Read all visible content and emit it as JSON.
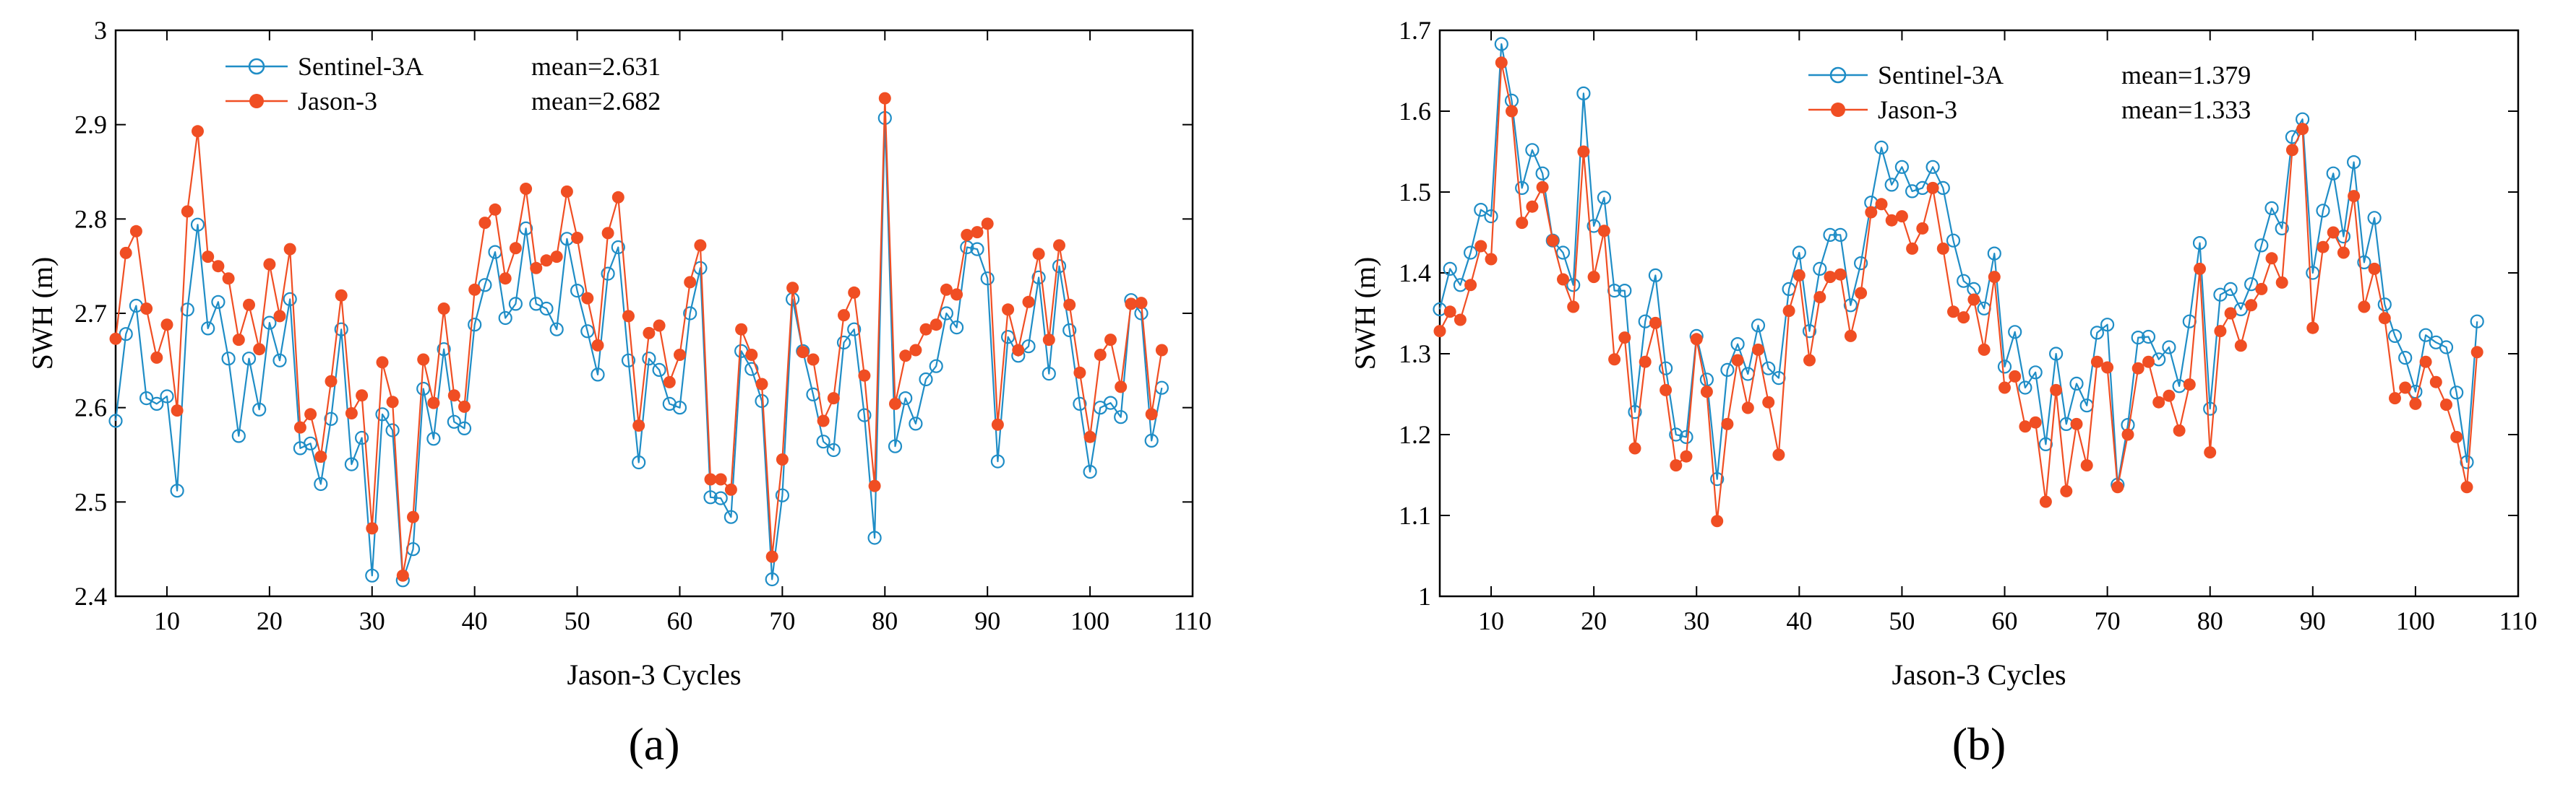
{
  "chart_data": [
    {
      "type": "line",
      "panel_label": "(a)",
      "title": "",
      "xlabel": "Jason-3 Cycles",
      "ylabel": "SWH (m)",
      "xlim": [
        5,
        110
      ],
      "ylim": [
        2.4,
        3.0
      ],
      "xticks": [
        "10",
        "20",
        "30",
        "40",
        "50",
        "60",
        "70",
        "80",
        "90",
        "100",
        "110"
      ],
      "yticks": [
        "2.4",
        "2.5",
        "2.6",
        "2.7",
        "2.8",
        "2.9",
        "3"
      ],
      "legend_position": "top-left",
      "legend": {
        "series_names": [
          "Sentinel-3A",
          "Jason-3"
        ],
        "stats": [
          "mean=2.631",
          "mean=2.682"
        ]
      },
      "x_start": 5,
      "series": [
        {
          "name": "Sentinel-3A",
          "color": "#1f8dc6",
          "marker": "open-circle",
          "values": [
            2.586,
            2.678,
            2.708,
            2.61,
            2.604,
            2.612,
            2.512,
            2.704,
            2.794,
            2.684,
            2.712,
            2.652,
            2.57,
            2.652,
            2.598,
            2.69,
            2.65,
            2.715,
            2.557,
            2.562,
            2.519,
            2.588,
            2.683,
            2.54,
            2.568,
            2.422,
            2.593,
            2.576,
            2.417,
            2.45,
            2.62,
            2.567,
            2.662,
            2.585,
            2.578,
            2.688,
            2.73,
            2.765,
            2.695,
            2.71,
            2.79,
            2.71,
            2.705,
            2.683,
            2.779,
            2.724,
            2.681,
            2.635,
            2.742,
            2.77,
            2.65,
            2.542,
            2.652,
            2.64,
            2.604,
            2.6,
            2.7,
            2.748,
            2.505,
            2.504,
            2.484,
            2.66,
            2.641,
            2.607,
            2.418,
            2.507,
            2.715,
            2.66,
            2.614,
            2.564,
            2.555,
            2.669,
            2.683,
            2.592,
            2.462,
            2.907,
            2.559,
            2.61,
            2.583,
            2.63,
            2.644,
            2.7,
            2.685,
            2.77,
            2.768,
            2.737,
            2.543,
            2.675,
            2.655,
            2.665,
            2.738,
            2.636,
            2.75,
            2.682,
            2.604,
            2.532,
            2.6,
            2.605,
            2.59,
            2.714,
            2.7,
            2.565,
            2.621
          ]
        },
        {
          "name": "Jason-3",
          "color": "#f04e23",
          "marker": "filled-circle",
          "values": [
            2.673,
            2.764,
            2.787,
            2.705,
            2.653,
            2.688,
            2.597,
            2.808,
            2.893,
            2.76,
            2.75,
            2.737,
            2.672,
            2.709,
            2.662,
            2.752,
            2.697,
            2.768,
            2.579,
            2.593,
            2.548,
            2.628,
            2.719,
            2.594,
            2.613,
            2.472,
            2.648,
            2.606,
            2.422,
            2.484,
            2.651,
            2.605,
            2.705,
            2.613,
            2.601,
            2.725,
            2.796,
            2.81,
            2.737,
            2.769,
            2.832,
            2.748,
            2.756,
            2.76,
            2.829,
            2.78,
            2.716,
            2.666,
            2.785,
            2.823,
            2.697,
            2.581,
            2.679,
            2.687,
            2.627,
            2.656,
            2.733,
            2.772,
            2.524,
            2.524,
            2.513,
            2.683,
            2.656,
            2.625,
            2.442,
            2.545,
            2.727,
            2.659,
            2.651,
            2.586,
            2.61,
            2.698,
            2.722,
            2.634,
            2.517,
            2.928,
            2.604,
            2.655,
            2.661,
            2.683,
            2.688,
            2.725,
            2.72,
            2.783,
            2.786,
            2.795,
            2.582,
            2.704,
            2.661,
            2.712,
            2.763,
            2.672,
            2.772,
            2.709,
            2.637,
            2.569,
            2.656,
            2.672,
            2.622,
            2.71,
            2.711,
            2.593,
            2.661
          ]
        }
      ]
    },
    {
      "type": "line",
      "panel_label": "(b)",
      "title": "",
      "xlabel": "Jason-3 Cycles",
      "ylabel": "SWH (m)",
      "xlim": [
        5,
        110
      ],
      "ylim": [
        1.0,
        1.7
      ],
      "xticks": [
        "10",
        "20",
        "30",
        "40",
        "50",
        "60",
        "70",
        "80",
        "90",
        "100",
        "110"
      ],
      "yticks": [
        "1",
        "1.1",
        "1.2",
        "1.3",
        "1.4",
        "1.5",
        "1.6",
        "1.7"
      ],
      "legend_position": "top-center",
      "legend": {
        "series_names": [
          "Sentinel-3A",
          "Jason-3"
        ],
        "stats": [
          "mean=1.379",
          "mean=1.333"
        ]
      },
      "x_start": 5,
      "series": [
        {
          "name": "Sentinel-3A",
          "color": "#1f8dc6",
          "marker": "open-circle",
          "values": [
            1.355,
            1.405,
            1.385,
            1.425,
            1.478,
            1.47,
            1.683,
            1.613,
            1.505,
            1.552,
            1.523,
            1.44,
            1.425,
            1.385,
            1.622,
            1.458,
            1.493,
            1.378,
            1.378,
            1.228,
            1.34,
            1.397,
            1.282,
            1.2,
            1.197,
            1.322,
            1.268,
            1.145,
            1.28,
            1.312,
            1.275,
            1.335,
            1.282,
            1.27,
            1.38,
            1.425,
            1.328,
            1.405,
            1.447,
            1.447,
            1.36,
            1.412,
            1.487,
            1.555,
            1.509,
            1.531,
            1.501,
            1.505,
            1.531,
            1.505,
            1.44,
            1.39,
            1.38,
            1.356,
            1.424,
            1.284,
            1.327,
            1.258,
            1.277,
            1.188,
            1.3,
            1.213,
            1.263,
            1.236,
            1.326,
            1.336,
            1.138,
            1.212,
            1.32,
            1.321,
            1.293,
            1.308,
            1.26,
            1.34,
            1.437,
            1.232,
            1.373,
            1.38,
            1.355,
            1.386,
            1.434,
            1.48,
            1.455,
            1.568,
            1.59,
            1.4,
            1.477,
            1.523,
            1.445,
            1.537,
            1.413,
            1.468,
            1.361,
            1.322,
            1.295,
            1.253,
            1.323,
            1.314,
            1.308,
            1.252,
            1.166,
            1.34
          ]
        },
        {
          "name": "Jason-3",
          "color": "#f04e23",
          "marker": "filled-circle",
          "values": [
            1.328,
            1.352,
            1.342,
            1.385,
            1.433,
            1.417,
            1.66,
            1.6,
            1.462,
            1.482,
            1.506,
            1.44,
            1.392,
            1.358,
            1.55,
            1.395,
            1.452,
            1.293,
            1.32,
            1.183,
            1.29,
            1.338,
            1.255,
            1.162,
            1.173,
            1.318,
            1.253,
            1.093,
            1.213,
            1.292,
            1.233,
            1.305,
            1.24,
            1.175,
            1.353,
            1.397,
            1.292,
            1.37,
            1.395,
            1.398,
            1.322,
            1.375,
            1.475,
            1.485,
            1.465,
            1.47,
            1.43,
            1.455,
            1.505,
            1.43,
            1.352,
            1.345,
            1.367,
            1.305,
            1.395,
            1.258,
            1.272,
            1.21,
            1.215,
            1.117,
            1.255,
            1.13,
            1.213,
            1.162,
            1.29,
            1.283,
            1.135,
            1.2,
            1.282,
            1.29,
            1.24,
            1.248,
            1.205,
            1.262,
            1.405,
            1.178,
            1.328,
            1.35,
            1.31,
            1.36,
            1.38,
            1.418,
            1.388,
            1.552,
            1.578,
            1.332,
            1.432,
            1.45,
            1.425,
            1.495,
            1.358,
            1.405,
            1.344,
            1.245,
            1.258,
            1.238,
            1.29,
            1.265,
            1.237,
            1.197,
            1.135,
            1.302
          ]
        }
      ]
    }
  ]
}
